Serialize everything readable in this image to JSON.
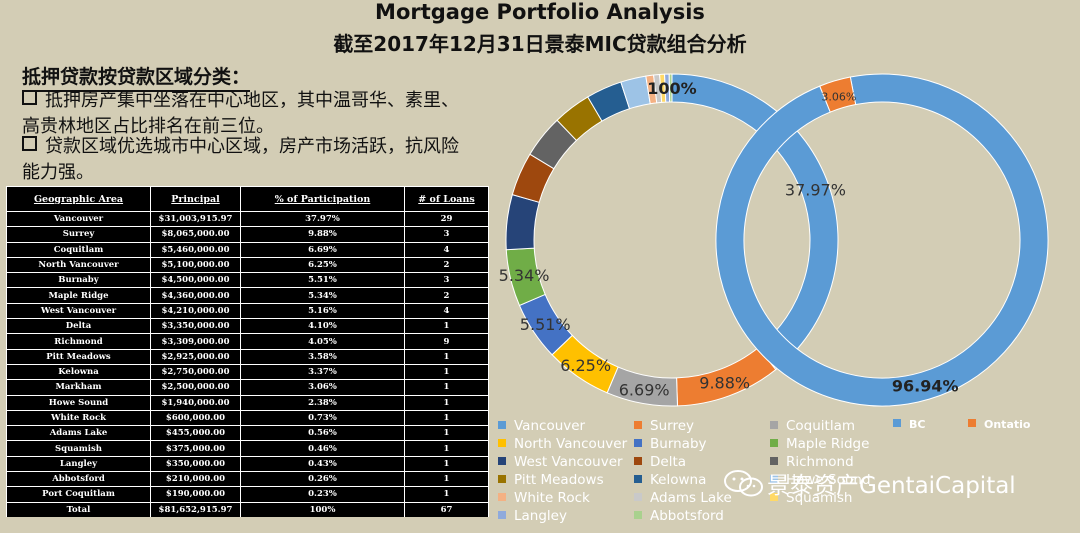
{
  "title": "Mortgage Portfolio Analysis",
  "subtitle": "截至2017年12月31日景泰MIC贷款组合分析",
  "section_heading": "抵押贷款按贷款区域分类：",
  "bullets": [
    "抵押房产集中坐落在中心地区，其中温哥华、素里、高贵林地区占比排名在前三位。",
    "贷款区域优选城市中心区域，房产市场活跃，抗风险能力强。"
  ],
  "table": {
    "headers": [
      "Geographic Area",
      "Principal",
      "% of Participation",
      "# of Loans"
    ],
    "rows": [
      [
        "Vancouver",
        "$31,003,915.97",
        "37.97%",
        "29"
      ],
      [
        "Surrey",
        "$8,065,000.00",
        "9.88%",
        "3"
      ],
      [
        "Coquitlam",
        "$5,460,000.00",
        "6.69%",
        "4"
      ],
      [
        "North Vancouver",
        "$5,100,000.00",
        "6.25%",
        "2"
      ],
      [
        "Burnaby",
        "$4,500,000.00",
        "5.51%",
        "3"
      ],
      [
        "Maple Ridge",
        "$4,360,000.00",
        "5.34%",
        "2"
      ],
      [
        "West Vancouver",
        "$4,210,000.00",
        "5.16%",
        "4"
      ],
      [
        "Delta",
        "$3,350,000.00",
        "4.10%",
        "1"
      ],
      [
        "Richmond",
        "$3,309,000.00",
        "4.05%",
        "9"
      ],
      [
        "Pitt Meadows",
        "$2,925,000.00",
        "3.58%",
        "1"
      ],
      [
        "Kelowna",
        "$2,750,000.00",
        "3.37%",
        "1"
      ],
      [
        "Markham",
        "$2,500,000.00",
        "3.06%",
        "1"
      ],
      [
        "Howe Sound",
        "$1,940,000.00",
        "2.38%",
        "1"
      ],
      [
        "White Rock",
        "$600,000.00",
        "0.73%",
        "1"
      ],
      [
        "Adams Lake",
        "$455,000.00",
        "0.56%",
        "1"
      ],
      [
        "Squamish",
        "$375,000.00",
        "0.46%",
        "1"
      ],
      [
        "Langley",
        "$350,000.00",
        "0.43%",
        "1"
      ],
      [
        "Abbotsford",
        "$210,000.00",
        "0.26%",
        "1"
      ],
      [
        "Port Coquitlam",
        "$190,000.00",
        "0.23%",
        "1"
      ]
    ],
    "total": [
      "Total",
      "$81,652,915.97",
      "100%",
      "67"
    ]
  },
  "chart_data": [
    {
      "type": "pie",
      "subtype": "doughnut",
      "ring": "left",
      "slices": [
        {
          "label": "Ontatio",
          "value": 100,
          "data_label": "100%",
          "color": "#d86a1c"
        },
        {
          "label": "Vancouver",
          "value": 37.97,
          "data_label": "37.97%",
          "color": "#5b9bd5"
        },
        {
          "label": "Surrey",
          "value": 9.88,
          "data_label": "9.88%",
          "color": "#ed7d31"
        },
        {
          "label": "Coquitlam",
          "value": 6.69,
          "data_label": "6.69%",
          "color": "#a5a5a5"
        },
        {
          "label": "North Vancouver",
          "value": 6.25,
          "data_label": "6.25%",
          "color": "#ffc000"
        },
        {
          "label": "Burnaby",
          "value": 5.51,
          "data_label": "5.51%",
          "color": "#4472c4"
        },
        {
          "label": "Maple Ridge",
          "value": 5.34,
          "data_label": "5.34%",
          "color": "#70ad47"
        },
        {
          "label": "West Vancouver",
          "value": 5.16,
          "data_label": "",
          "color": "#264478"
        },
        {
          "label": "Delta",
          "value": 4.1,
          "data_label": "",
          "color": "#9e480e"
        },
        {
          "label": "Richmond",
          "value": 4.05,
          "data_label": "",
          "color": "#636363"
        },
        {
          "label": "Pitt Meadows",
          "value": 3.58,
          "data_label": "",
          "color": "#997300"
        },
        {
          "label": "Kelowna",
          "value": 3.37,
          "data_label": "",
          "color": "#255e91"
        },
        {
          "label": "Howe Sound",
          "value": 2.38,
          "data_label": "",
          "color": "#9dc3e6"
        },
        {
          "label": "White Rock",
          "value": 0.73,
          "data_label": "",
          "color": "#f4b183"
        },
        {
          "label": "Adams Lake",
          "value": 0.56,
          "data_label": "",
          "color": "#c9c9c9"
        },
        {
          "label": "Squamish",
          "value": 0.46,
          "data_label": "",
          "color": "#ffd966"
        },
        {
          "label": "Langley",
          "value": 0.43,
          "data_label": "",
          "color": "#8faadc"
        },
        {
          "label": "Abbotsford",
          "value": 0.26,
          "data_label": "",
          "color": "#a9d18e"
        }
      ]
    },
    {
      "type": "pie",
      "subtype": "doughnut",
      "ring": "right",
      "slices": [
        {
          "label": "BC",
          "value": 96.94,
          "data_label": "96.94%",
          "color": "#5b9bd5"
        },
        {
          "label": "Ontatio",
          "value": 3.06,
          "data_label": "3.06%",
          "color": "#ed7d31"
        }
      ]
    }
  ],
  "legend": [
    {
      "label": "Vancouver",
      "color": "#5b9bd5"
    },
    {
      "label": "Surrey",
      "color": "#ed7d31"
    },
    {
      "label": "Coquitlam",
      "color": "#a5a5a5"
    },
    {
      "label": "BC",
      "color": "#5b9bd5"
    },
    {
      "label": "Ontatio",
      "color": "#ed7d31"
    },
    {
      "label": "North Vancouver",
      "color": "#ffc000"
    },
    {
      "label": "Burnaby",
      "color": "#4472c4"
    },
    {
      "label": "Maple Ridge",
      "color": "#70ad47"
    },
    {
      "label": "West Vancouver",
      "color": "#264478"
    },
    {
      "label": "Delta",
      "color": "#9e480e"
    },
    {
      "label": "Richmond",
      "color": "#636363"
    },
    {
      "label": "Pitt Meadows",
      "color": "#997300"
    },
    {
      "label": "Kelowna",
      "color": "#255e91"
    },
    {
      "label": "Howe Sound",
      "color": "#9dc3e6"
    },
    {
      "label": "White Rock",
      "color": "#f4b183"
    },
    {
      "label": "Adams Lake",
      "color": "#c9c9c9"
    },
    {
      "label": "Squamish",
      "color": "#ffd966"
    },
    {
      "label": "Langley",
      "color": "#8faadc"
    },
    {
      "label": "Abbotsford",
      "color": "#a9d18e"
    }
  ],
  "watermark": {
    "text": "景泰资产GentaiCapital",
    "icon": "wechat-icon"
  }
}
